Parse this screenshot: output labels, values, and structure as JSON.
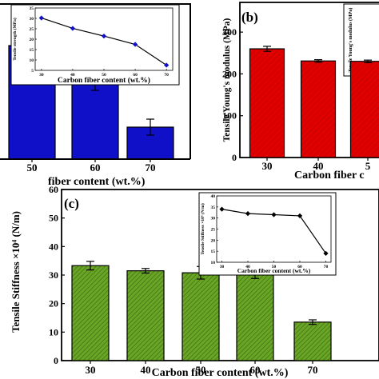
{
  "chart_data": [
    {
      "id": "a",
      "type": "bar",
      "panel_label": "",
      "categories": [
        "50",
        "60",
        "70"
      ],
      "values": [
        35.5,
        29,
        10
      ],
      "errors": [
        3.5,
        7.5,
        2.5
      ],
      "xlabel": "fiber content (wt.%)",
      "ylabel": "",
      "ylim": [
        0,
        45
      ],
      "bar_color": "#1010c8",
      "inset": {
        "type": "line",
        "x": [
          30,
          40,
          50,
          60,
          70
        ],
        "y": [
          30.2,
          25.2,
          21.5,
          17.5,
          7.5
        ],
        "xlabel": "Carbon fiber content (wt.%)",
        "ylabel": "Tensile strength (MPa)",
        "xticks": [
          "30",
          "40",
          "50",
          "60",
          "70"
        ],
        "yticks": [
          "5",
          "10",
          "15",
          "20",
          "25",
          "30",
          "35"
        ],
        "xlim": [
          28,
          72
        ],
        "ylim": [
          5,
          35
        ],
        "color": "#1010c8"
      }
    },
    {
      "id": "b",
      "type": "bar",
      "panel_label": "(b)",
      "categories": [
        "30",
        "40",
        "5"
      ],
      "values": [
        260,
        231,
        230
      ],
      "errors": [
        6,
        3,
        3
      ],
      "xlabel": "Carbon fiber c",
      "ylabel": "Tensile Young's modulus (MPa)",
      "ylim": [
        0,
        350
      ],
      "yticks": [
        "0",
        "100",
        "200",
        "300"
      ],
      "bar_color": "#dd0000",
      "inset_ylabel": "Tensile Young's modulus (MPa)"
    },
    {
      "id": "c",
      "type": "bar",
      "panel_label": "(c)",
      "categories": [
        "30",
        "40",
        "50",
        "60",
        "70"
      ],
      "values": [
        33.3,
        31.5,
        30.8,
        30.6,
        13.5
      ],
      "errors": [
        1.5,
        0.8,
        2.2,
        1.8,
        0.8
      ],
      "xlabel": "Carbon fiber content (wt.%)",
      "ylabel": "Tensile Stiffness ×10⁴ (N/m)",
      "ylim": [
        0,
        60
      ],
      "yticks": [
        "0",
        "10",
        "20",
        "30",
        "40",
        "50",
        "60"
      ],
      "bar_color": "#5f9a1f",
      "inset": {
        "type": "line",
        "x": [
          30,
          40,
          50,
          60,
          70
        ],
        "y": [
          34,
          32,
          31.5,
          31,
          14
        ],
        "xlabel": "Carbon fiber content (wt.%)",
        "ylabel": "Tensile Stiffness ×10⁴ (N/m)",
        "xticks": [
          "30",
          "40",
          "50",
          "60",
          "70"
        ],
        "yticks": [
          "10",
          "15",
          "20",
          "25",
          "30",
          "35",
          "40"
        ],
        "xlim": [
          28,
          72
        ],
        "ylim": [
          10,
          40
        ],
        "color": "#000000"
      }
    }
  ]
}
